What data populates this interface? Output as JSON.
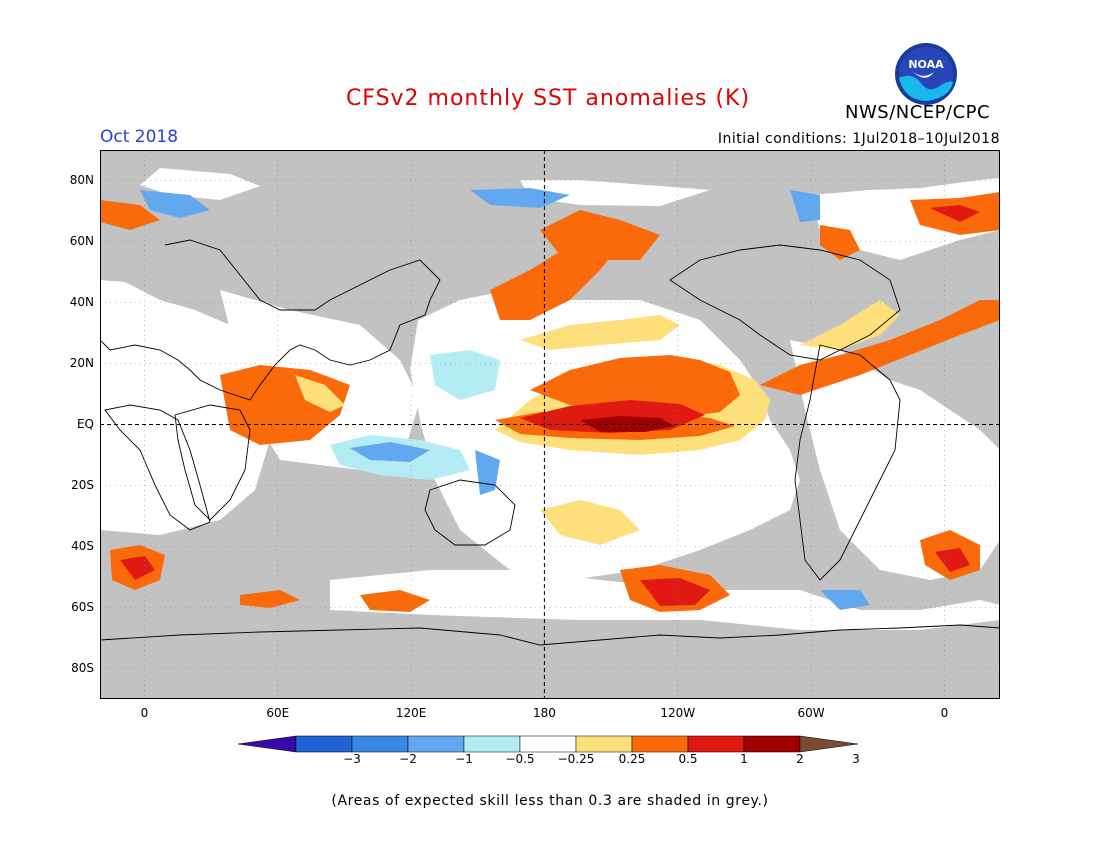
{
  "title": "CFSv2 monthly SST anomalies (K)",
  "valid_month": "Oct 2018",
  "initial_conditions": "Initial conditions: 1Jul2018–10Jul2018",
  "agency": "NWS/NCEP/CPC",
  "logo": {
    "icon": "noaa-logo-icon",
    "text": "NOAA"
  },
  "lat_labels": [
    "80N",
    "60N",
    "40N",
    "20N",
    "EQ",
    "20S",
    "40S",
    "60S",
    "80S"
  ],
  "lat_values": [
    80,
    60,
    40,
    20,
    0,
    -20,
    -40,
    -60,
    -80
  ],
  "lon_labels": [
    "0",
    "60E",
    "120E",
    "180",
    "120W",
    "60W",
    "0"
  ],
  "lon_values": [
    0,
    60,
    120,
    180,
    240,
    300,
    360
  ],
  "map_extent": {
    "lon_min": -20,
    "lon_max": 385,
    "lat_min": -90,
    "lat_max": 90
  },
  "colorbar": {
    "labels": [
      "−3",
      "−2",
      "−1",
      "−0.5",
      "−0.25",
      "0.25",
      "0.5",
      "1",
      "2",
      "3"
    ],
    "colors": [
      "#3a0aa8",
      "#1f63d4",
      "#3a87e6",
      "#62a8f0",
      "#b3ecf5",
      "#ffffff",
      "#fde07c",
      "#fa6a0a",
      "#e01a12",
      "#a10000",
      "#7a4a35"
    ]
  },
  "colors": {
    "land": "#c2c2c2",
    "ocean_neutral": "#ffffff",
    "title": "#e00000",
    "month": "#2a3fd6"
  },
  "footnote": "(Areas of expected skill less than 0.3 are shaded in grey.)"
}
